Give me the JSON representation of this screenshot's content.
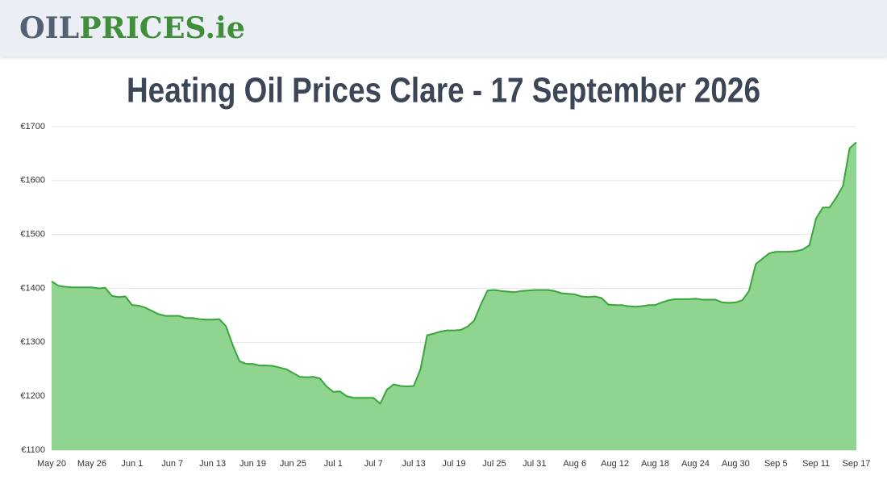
{
  "header": {
    "logo": [
      "OIL",
      "PRICES.ie"
    ]
  },
  "chart_data": {
    "type": "area",
    "title": "Heating Oil Prices Clare - 17 September 2026",
    "categories": [
      "May 20",
      null,
      null,
      null,
      null,
      null,
      "May 26",
      null,
      null,
      null,
      null,
      null,
      "Jun 1",
      null,
      null,
      null,
      null,
      null,
      "Jun 7",
      null,
      null,
      null,
      null,
      null,
      "Jun 13",
      null,
      null,
      null,
      null,
      null,
      "Jun 19",
      null,
      null,
      null,
      null,
      null,
      "Jun 25",
      null,
      null,
      null,
      null,
      null,
      "Jul 1",
      null,
      null,
      null,
      null,
      null,
      "Jul 7",
      null,
      null,
      null,
      null,
      null,
      "Jul 13",
      null,
      null,
      null,
      null,
      null,
      "Jul 19",
      null,
      null,
      null,
      null,
      null,
      "Jul 25",
      null,
      null,
      null,
      null,
      null,
      "Jul 31",
      null,
      null,
      null,
      null,
      null,
      "Aug 6",
      null,
      null,
      null,
      null,
      null,
      "Aug 12",
      null,
      null,
      null,
      null,
      null,
      "Aug 18",
      null,
      null,
      null,
      null,
      null,
      "Aug 24",
      null,
      null,
      null,
      null,
      null,
      "Aug 30",
      null,
      null,
      null,
      null,
      null,
      "Sep 5",
      null,
      null,
      null,
      null,
      null,
      "Sep 11",
      null,
      null,
      null,
      null,
      null,
      "Sep 17"
    ],
    "series": [
      {
        "color": "#3aa53a",
        "fill": "#8fd48f",
        "values": [
          1413,
          1405,
          1403,
          1402,
          1402,
          1402,
          1402,
          1400,
          1401,
          1386,
          1384,
          1385,
          1369,
          1368,
          1364,
          1358,
          1352,
          1349,
          1349,
          1349,
          1345,
          1345,
          1343,
          1342,
          1342,
          1343,
          1330,
          1295,
          1265,
          1260,
          1260,
          1257,
          1257,
          1256,
          1253,
          1250,
          1243,
          1236,
          1235,
          1236,
          1233,
          1218,
          1208,
          1209,
          1200,
          1197,
          1197,
          1197,
          1197,
          1186,
          1212,
          1222,
          1219,
          1218,
          1219,
          1250,
          1313,
          1316,
          1320,
          1322,
          1322,
          1323,
          1329,
          1340,
          1370,
          1396,
          1397,
          1395,
          1394,
          1393,
          1395,
          1396,
          1397,
          1397,
          1397,
          1395,
          1391,
          1390,
          1389,
          1385,
          1384,
          1385,
          1382,
          1370,
          1369,
          1369,
          1367,
          1366,
          1367,
          1369,
          1369,
          1374,
          1378,
          1380,
          1380,
          1380,
          1381,
          1379,
          1379,
          1379,
          1374,
          1373,
          1374,
          1378,
          1395,
          1445,
          1455,
          1465,
          1468,
          1468,
          1468,
          1469,
          1472,
          1480,
          1530,
          1550,
          1550,
          1568,
          1590,
          1660,
          1671
        ]
      }
    ],
    "ylim": [
      1100,
      1700
    ],
    "yticks": [
      {
        "value": 1100,
        "label": "€1100"
      },
      {
        "value": 1200,
        "label": "€1200"
      },
      {
        "value": 1300,
        "label": "€1300"
      },
      {
        "value": 1400,
        "label": "€1400"
      },
      {
        "value": 1500,
        "label": "€1500"
      },
      {
        "value": 1600,
        "label": "€1600"
      },
      {
        "value": 1700,
        "label": "€1700"
      }
    ],
    "grid": true
  }
}
